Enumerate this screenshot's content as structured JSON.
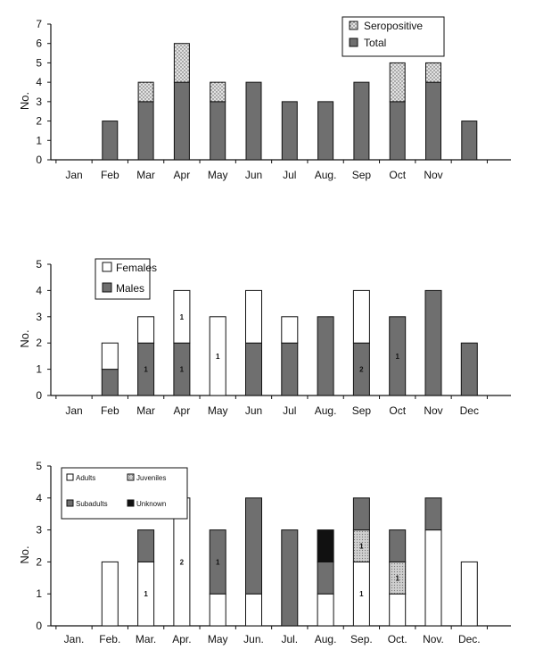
{
  "colors": {
    "dark": "#6f6f6f",
    "white": "#ffffff",
    "dotted": "#d9d9d9",
    "juvenile": "#c2c2c2",
    "unknown": "#111111",
    "ink": "#111111"
  },
  "chart_data": [
    {
      "type": "bar",
      "stacked": true,
      "ylabel": "No.",
      "ylim": [
        0,
        7
      ],
      "yticks": [
        0,
        1,
        2,
        3,
        4,
        5,
        6,
        7
      ],
      "categories": [
        "Jan",
        "Feb",
        "Mar",
        "Apr",
        "May",
        "Jun",
        "Jul",
        "Aug.",
        "Sep",
        "Oct",
        "Nov",
        ""
      ],
      "legend_position": "top-right",
      "series": [
        {
          "name": "Total",
          "fill": "dark",
          "values": [
            0,
            2,
            3,
            4,
            3,
            4,
            3,
            3,
            4,
            3,
            4,
            2
          ]
        },
        {
          "name": "Seropositive",
          "fill": "dotted",
          "values": [
            0,
            0,
            1,
            2,
            1,
            0,
            0,
            0,
            0,
            2,
            1,
            0
          ]
        }
      ],
      "labels": []
    },
    {
      "type": "bar",
      "stacked": true,
      "ylabel": "No.",
      "ylim": [
        0,
        5
      ],
      "yticks": [
        0,
        1,
        2,
        3,
        4,
        5
      ],
      "categories": [
        "Jan",
        "Feb",
        "Mar",
        "Apr",
        "May",
        "Jun",
        "Jul",
        "Aug.",
        "Sep",
        "Oct",
        "Nov",
        "Dec"
      ],
      "legend_position": "top-left",
      "series": [
        {
          "name": "Males",
          "fill": "dark",
          "values": [
            0,
            1,
            2,
            2,
            0,
            2,
            2,
            3,
            2,
            3,
            4,
            2
          ]
        },
        {
          "name": "Females",
          "fill": "white",
          "values": [
            0,
            1,
            1,
            2,
            3,
            2,
            1,
            0,
            2,
            0,
            0,
            0
          ]
        }
      ],
      "labels": [
        {
          "category": "Mar",
          "series": "Males",
          "text": "1"
        },
        {
          "category": "Apr",
          "series": "Males",
          "text": "1"
        },
        {
          "category": "Apr",
          "series": "Females",
          "text": "1"
        },
        {
          "category": "May",
          "series": "Females",
          "text": "1"
        },
        {
          "category": "Sep",
          "series": "Males",
          "text": "2"
        },
        {
          "category": "Oct",
          "series": "Males",
          "text": "1"
        }
      ]
    },
    {
      "type": "bar",
      "stacked": true,
      "ylabel": "No.",
      "ylim": [
        0,
        5
      ],
      "yticks": [
        0,
        1,
        2,
        3,
        4,
        5
      ],
      "categories": [
        "Jan.",
        "Feb.",
        "Mar.",
        "Apr.",
        "May",
        "Jun.",
        "Jul.",
        "Aug.",
        "Sep.",
        "Oct.",
        "Nov.",
        "Dec."
      ],
      "legend_position": "top-left",
      "series": [
        {
          "name": "Adults",
          "fill": "white",
          "values": [
            0,
            2,
            2,
            4,
            1,
            1,
            0,
            1,
            2,
            1,
            3,
            2
          ]
        },
        {
          "name": "Juveniles",
          "fill": "juvenile",
          "values": [
            0,
            0,
            0,
            0,
            0,
            0,
            0,
            0,
            1,
            1,
            0,
            0
          ]
        },
        {
          "name": "Subadults",
          "fill": "dark",
          "values": [
            0,
            0,
            1,
            0,
            2,
            3,
            3,
            1,
            1,
            1,
            1,
            0
          ]
        },
        {
          "name": "Unknown",
          "fill": "unknown",
          "values": [
            0,
            0,
            0,
            0,
            0,
            0,
            0,
            1,
            0,
            0,
            0,
            0
          ]
        }
      ],
      "labels": [
        {
          "category": "Mar.",
          "series": "Adults",
          "text": "1"
        },
        {
          "category": "Apr.",
          "series": "Adults",
          "text": "2"
        },
        {
          "category": "May",
          "series": "Subadults",
          "text": "1"
        },
        {
          "category": "Sep.",
          "series": "Adults",
          "text": "1"
        },
        {
          "category": "Sep.",
          "series": "Juveniles",
          "text": "1"
        },
        {
          "category": "Oct.",
          "series": "Juveniles",
          "text": "1"
        }
      ]
    }
  ]
}
